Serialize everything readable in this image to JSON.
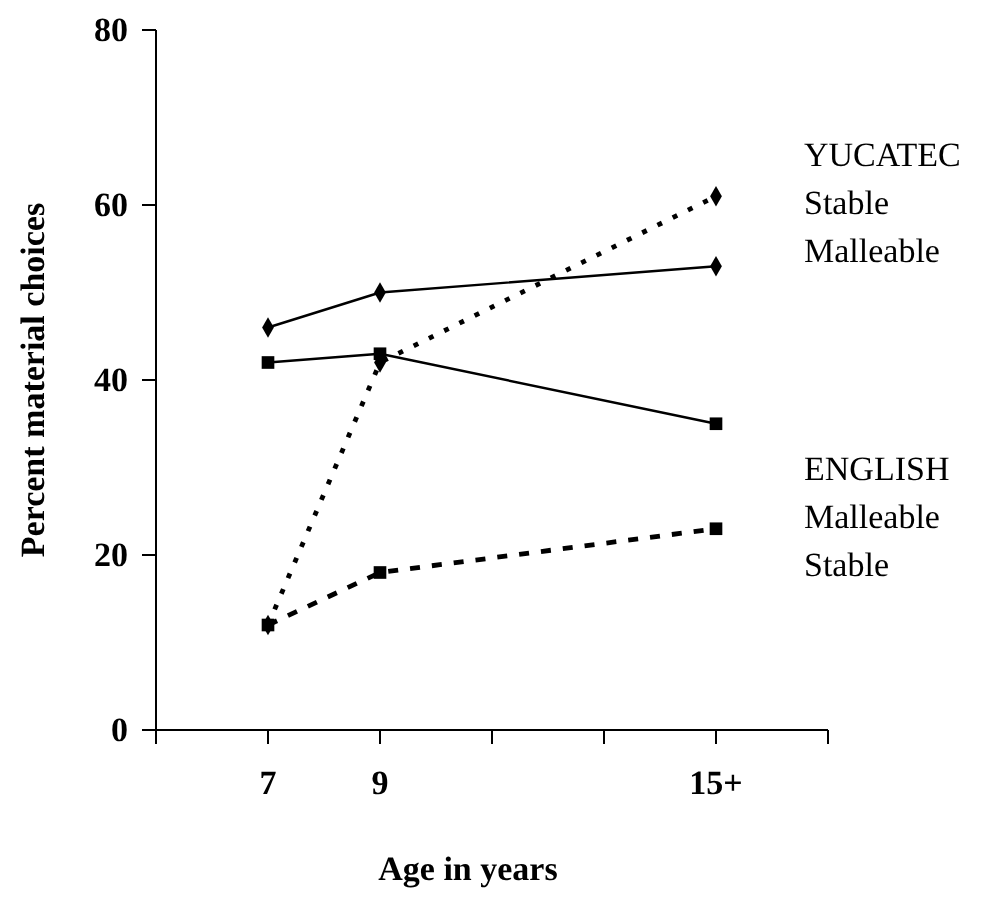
{
  "chart_data": {
    "type": "line",
    "xlabel": "Age in years",
    "ylabel": "Percent material choices",
    "categories": [
      null,
      "7",
      "9",
      null,
      null,
      "15+",
      null
    ],
    "ylim": [
      0,
      80
    ],
    "yticks": [
      0,
      20,
      40,
      60,
      80
    ],
    "legend": "right",
    "annotations": [
      "YUCATEC",
      "ENGLISH"
    ],
    "series": [
      {
        "name": "Stable",
        "color": "#000000",
        "marker": "diamond",
        "line_style": "dotted",
        "values": [
          null,
          12,
          42,
          null,
          null,
          61,
          null
        ]
      },
      {
        "name": "Malleable",
        "color": "#000000",
        "marker": "diamond",
        "line_style": "solid",
        "values": [
          null,
          46,
          50,
          null,
          null,
          53,
          null
        ]
      },
      {
        "name": "Malleable",
        "color": "#000000",
        "marker": "square",
        "line_style": "solid",
        "values": [
          null,
          42,
          43,
          null,
          null,
          35,
          null
        ]
      },
      {
        "name": "Stable",
        "color": "#000000",
        "marker": "square",
        "line_style": "dashed",
        "values": [
          null,
          12,
          18,
          null,
          null,
          23,
          null
        ]
      }
    ]
  }
}
